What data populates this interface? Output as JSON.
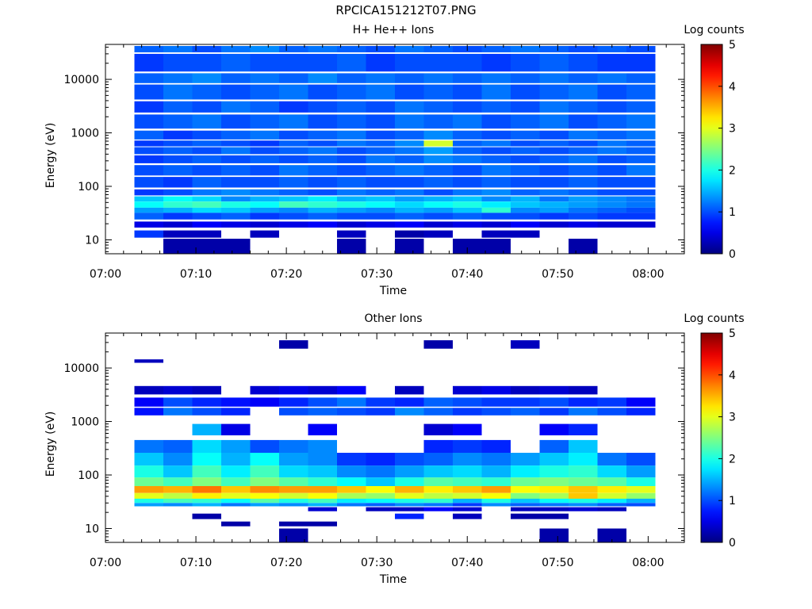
{
  "figure": {
    "title": "RPCICA151212T07.PNG"
  },
  "time_ticks": [
    "07:00",
    "07:10",
    "07:20",
    "07:30",
    "07:40",
    "07:50",
    "08:00"
  ],
  "chart_data": [
    {
      "type": "heatmap",
      "title": "H+ He++ Ions",
      "xlabel": "Time",
      "ylabel": "Energy (eV)",
      "x_unit": "minutes after 07:00",
      "xlim": [
        "07:00",
        "08:04"
      ],
      "ylim": [
        5.5,
        45000
      ],
      "yscale": "log",
      "ytick_values": [
        10,
        100,
        1000,
        10000
      ],
      "ytick_labels": [
        "10",
        "100",
        "1000",
        "10000"
      ],
      "colorbar": {
        "label": "Log counts",
        "range": [
          0,
          5
        ],
        "tick_labels": [
          "0",
          "1",
          "2",
          "3",
          "4",
          "5"
        ]
      },
      "time_bins_start": [
        3.2,
        6.4,
        9.6,
        12.8,
        16,
        19.2,
        22.4,
        25.6,
        28.8,
        32,
        35.2,
        38.4,
        41.6,
        44.8,
        48,
        51.2,
        54.4,
        57.6
      ],
      "bin_width_minutes": 3.2,
      "bands": [
        {
          "e_low": 32000,
          "e_high": 42000,
          "values": [
            1.1,
            1.2,
            1.0,
            1.2,
            1.3,
            1.1,
            1.2,
            1.1,
            1.0,
            1.2,
            1.1,
            1.0,
            1.1,
            1.2,
            1.1,
            1.0,
            1.1,
            1.0
          ]
        },
        {
          "e_low": 14000,
          "e_high": 30000,
          "values": [
            0.9,
            1.0,
            1.0,
            1.1,
            1.0,
            1.0,
            1.0,
            1.1,
            0.9,
            1.0,
            1.0,
            1.0,
            0.9,
            1.0,
            1.1,
            1.0,
            0.9,
            0.9
          ]
        },
        {
          "e_low": 8500,
          "e_high": 13000,
          "values": [
            1.1,
            1.2,
            1.3,
            1.1,
            1.2,
            1.1,
            1.3,
            1.1,
            1.2,
            1.1,
            1.2,
            1.1,
            1.2,
            1.1,
            1.2,
            1.1,
            1.2,
            1.1
          ]
        },
        {
          "e_low": 4200,
          "e_high": 8000,
          "values": [
            1.0,
            1.2,
            1.1,
            1.0,
            1.1,
            1.2,
            1.0,
            1.1,
            1.2,
            1.0,
            1.1,
            1.0,
            1.2,
            1.0,
            1.1,
            1.2,
            1.0,
            1.1
          ]
        },
        {
          "e_low": 2400,
          "e_high": 3900,
          "values": [
            0.9,
            1.1,
            1.0,
            1.2,
            1.1,
            0.9,
            1.0,
            1.1,
            1.0,
            1.2,
            1.1,
            1.0,
            1.1,
            1.0,
            1.2,
            1.1,
            1.0,
            1.1
          ]
        },
        {
          "e_low": 1200,
          "e_high": 2200,
          "values": [
            1.0,
            1.1,
            1.2,
            1.0,
            1.1,
            1.2,
            1.0,
            1.1,
            1.0,
            1.2,
            1.1,
            1.2,
            1.0,
            1.1,
            1.2,
            1.0,
            1.1,
            1.2
          ]
        },
        {
          "e_low": 750,
          "e_high": 1100,
          "values": [
            1.1,
            0.9,
            1.0,
            1.1,
            1.2,
            1.0,
            1.1,
            1.2,
            1.0,
            1.1,
            1.3,
            1.1,
            1.0,
            1.1,
            1.0,
            1.2,
            1.1,
            1.2
          ]
        },
        {
          "e_low": 560,
          "e_high": 720,
          "values": [
            0.9,
            1.0,
            1.1,
            1.0,
            0.9,
            1.1,
            1.0,
            1.2,
            1.1,
            1.3,
            2.9,
            1.1,
            1.2,
            1.0,
            1.1,
            1.0,
            1.2,
            1.1
          ]
        },
        {
          "e_low": 400,
          "e_high": 540,
          "values": [
            1.0,
            1.1,
            1.0,
            1.2,
            1.0,
            1.1,
            1.2,
            1.0,
            1.1,
            1.2,
            1.4,
            1.1,
            1.0,
            1.1,
            1.0,
            1.1,
            1.2,
            1.1
          ]
        },
        {
          "e_low": 270,
          "e_high": 380,
          "values": [
            0.9,
            1.0,
            1.1,
            1.0,
            1.1,
            1.0,
            1.1,
            1.0,
            1.2,
            1.1,
            1.3,
            1.2,
            1.1,
            1.0,
            1.1,
            1.2,
            1.0,
            1.1
          ]
        },
        {
          "e_low": 160,
          "e_high": 250,
          "values": [
            1.0,
            1.1,
            1.0,
            1.1,
            1.0,
            1.2,
            1.1,
            1.0,
            1.1,
            1.2,
            1.1,
            1.0,
            1.2,
            1.1,
            1.0,
            1.1,
            1.0,
            1.2
          ]
        },
        {
          "e_low": 95,
          "e_high": 150,
          "values": [
            1.0,
            0.9,
            1.1,
            1.0,
            1.0,
            1.1,
            1.0,
            1.1,
            1.0,
            1.0,
            1.1,
            1.0,
            1.1,
            1.0,
            1.0,
            1.1,
            1.0,
            1.0
          ]
        },
        {
          "e_low": 68,
          "e_high": 88,
          "values": [
            0.9,
            1.0,
            1.2,
            1.3,
            1.2,
            1.1,
            1.0,
            1.2,
            1.1,
            1.2,
            1.0,
            1.2,
            1.3,
            1.1,
            1.2,
            1.1,
            1.0,
            1.0
          ]
        },
        {
          "e_low": 52,
          "e_high": 65,
          "values": [
            1.6,
            1.9,
            1.7,
            1.3,
            1.5,
            1.6,
            1.8,
            1.5,
            1.6,
            1.4,
            1.5,
            1.6,
            1.3,
            1.5,
            1.2,
            1.4,
            1.3,
            1.2
          ]
        },
        {
          "e_low": 40,
          "e_high": 52,
          "values": [
            1.9,
            2.1,
            2.2,
            2.0,
            1.9,
            2.2,
            2.1,
            2.0,
            1.9,
            1.7,
            1.9,
            2.0,
            1.8,
            1.6,
            1.5,
            1.4,
            1.3,
            1.2
          ]
        },
        {
          "e_low": 32,
          "e_high": 40,
          "values": [
            1.4,
            1.5,
            1.7,
            1.6,
            1.4,
            1.3,
            1.5,
            1.4,
            1.3,
            1.5,
            1.4,
            1.6,
            2.1,
            1.3,
            1.4,
            1.2,
            1.1,
            1.0
          ]
        },
        {
          "e_low": 24,
          "e_high": 32,
          "values": [
            1.1,
            0.9,
            1.0,
            1.1,
            0.9,
            1.0,
            1.1,
            1.0,
            1.0,
            1.1,
            1.0,
            1.1,
            1.0,
            1.0,
            0.9,
            1.0,
            0.9,
            0.9
          ]
        },
        {
          "e_low": 17,
          "e_high": 22,
          "values": [
            0.5,
            0.4,
            0.6,
            0.5,
            0.4,
            0.5,
            0.6,
            0.4,
            0.5,
            0.6,
            0.4,
            0.5,
            0.4,
            0.6,
            0.4,
            0.5,
            0.4,
            0.4
          ]
        },
        {
          "e_low": 11,
          "e_high": 15,
          "values": [
            0.9,
            0.3,
            0.3,
            null,
            0.3,
            null,
            null,
            0.3,
            null,
            0.2,
            0.3,
            null,
            0.3,
            0.3,
            null,
            null,
            null,
            null
          ]
        },
        {
          "e_low": 5.6,
          "e_high": 10.5,
          "values": [
            null,
            0.2,
            0.2,
            0.2,
            null,
            null,
            null,
            0.2,
            null,
            0.2,
            null,
            0.2,
            0.2,
            null,
            null,
            0.2,
            null,
            null
          ]
        }
      ]
    },
    {
      "type": "heatmap",
      "title": "Other Ions",
      "xlabel": "Time",
      "ylabel": "Energy (eV)",
      "x_unit": "minutes after 07:00",
      "xlim": [
        "07:00",
        "08:04"
      ],
      "ylim": [
        5.5,
        45000
      ],
      "yscale": "log",
      "ytick_values": [
        10,
        100,
        1000,
        10000
      ],
      "ytick_labels": [
        "10",
        "100",
        "1000",
        "10000"
      ],
      "colorbar": {
        "label": "Log counts",
        "range": [
          0,
          5
        ],
        "tick_labels": [
          "0",
          "1",
          "2",
          "3",
          "4",
          "5"
        ]
      },
      "time_bins_start": [
        3.2,
        6.4,
        9.6,
        12.8,
        16,
        19.2,
        22.4,
        25.6,
        28.8,
        32,
        35.2,
        38.4,
        41.6,
        44.8,
        48,
        51.2,
        54.4,
        57.6
      ],
      "bin_width_minutes": 3.2,
      "bands": [
        {
          "e_low": 23000,
          "e_high": 33000,
          "values": [
            null,
            null,
            null,
            null,
            null,
            0.2,
            null,
            null,
            null,
            null,
            0.2,
            null,
            null,
            0.3,
            null,
            null,
            null,
            null
          ]
        },
        {
          "e_low": 12500,
          "e_high": 14500,
          "values": [
            0.3,
            null,
            null,
            null,
            null,
            null,
            null,
            null,
            null,
            null,
            null,
            null,
            null,
            null,
            null,
            null,
            null,
            null
          ]
        },
        {
          "e_low": 3200,
          "e_high": 4600,
          "values": [
            0.3,
            0.4,
            0.3,
            null,
            0.4,
            0.5,
            0.4,
            0.6,
            null,
            0.3,
            null,
            0.4,
            0.5,
            0.3,
            0.4,
            0.3,
            null,
            null
          ]
        },
        {
          "e_low": 1900,
          "e_high": 2800,
          "values": [
            0.6,
            1.0,
            0.8,
            0.7,
            0.6,
            0.8,
            1.0,
            1.2,
            0.9,
            0.8,
            1.1,
            1.0,
            0.9,
            0.9,
            1.0,
            0.8,
            0.9,
            0.6
          ]
        },
        {
          "e_low": 1300,
          "e_high": 1800,
          "values": [
            0.7,
            1.2,
            1.0,
            0.8,
            null,
            1.0,
            1.1,
            1.0,
            0.9,
            1.3,
            1.1,
            0.9,
            1.0,
            1.1,
            0.9,
            1.2,
            1.0,
            0.8
          ]
        },
        {
          "e_low": 550,
          "e_high": 900,
          "values": [
            null,
            null,
            1.5,
            0.5,
            null,
            null,
            0.6,
            null,
            null,
            null,
            0.4,
            0.6,
            null,
            null,
            0.6,
            0.8,
            null,
            null
          ]
        },
        {
          "e_low": 260,
          "e_high": 450,
          "values": [
            1.2,
            1.1,
            1.7,
            1.4,
            1.0,
            1.2,
            1.3,
            null,
            null,
            null,
            0.8,
            0.9,
            0.8,
            null,
            1.1,
            1.6,
            null,
            null
          ]
        },
        {
          "e_low": 150,
          "e_high": 260,
          "values": [
            1.6,
            1.3,
            1.9,
            1.5,
            1.9,
            1.4,
            1.3,
            0.9,
            0.8,
            1.0,
            1.1,
            1.3,
            1.2,
            1.4,
            1.6,
            1.8,
            1.2,
            1.0
          ]
        },
        {
          "e_low": 90,
          "e_high": 150,
          "values": [
            2.0,
            1.6,
            2.2,
            1.8,
            2.2,
            1.7,
            1.6,
            1.3,
            1.2,
            1.4,
            1.6,
            1.7,
            1.5,
            1.8,
            2.0,
            2.1,
            1.7,
            1.4
          ]
        },
        {
          "e_low": 62,
          "e_high": 90,
          "values": [
            2.4,
            2.2,
            2.5,
            2.2,
            2.5,
            2.3,
            2.1,
            1.9,
            1.6,
            2.0,
            2.3,
            2.2,
            2.1,
            2.4,
            2.5,
            2.4,
            2.3,
            2.0
          ]
        },
        {
          "e_low": 46,
          "e_high": 62,
          "values": [
            3.6,
            3.5,
            3.8,
            3.4,
            3.7,
            3.6,
            3.6,
            3.4,
            3.1,
            3.5,
            3.2,
            3.4,
            3.6,
            3.1,
            3.2,
            3.4,
            3.2,
            3.0
          ]
        },
        {
          "e_low": 36,
          "e_high": 46,
          "values": [
            3.0,
            2.8,
            3.2,
            3.0,
            3.1,
            2.9,
            3.1,
            2.7,
            2.6,
            3.0,
            2.8,
            2.9,
            3.1,
            2.5,
            2.7,
            3.4,
            2.9,
            2.6
          ]
        },
        {
          "e_low": 30,
          "e_high": 36,
          "values": [
            2.0,
            2.2,
            2.1,
            1.9,
            2.3,
            2.0,
            2.2,
            1.8,
            1.9,
            2.0,
            2.1,
            1.5,
            2.0,
            1.6,
            1.9,
            2.0,
            1.8,
            1.5
          ]
        },
        {
          "e_low": 26,
          "e_high": 30,
          "values": [
            1.4,
            1.3,
            1.5,
            1.2,
            1.4,
            1.3,
            1.5,
            1.2,
            1.1,
            1.3,
            1.2,
            0.9,
            1.3,
            1.1,
            1.2,
            1.3,
            1.1,
            1.0
          ]
        },
        {
          "e_low": 21,
          "e_high": 25,
          "values": [
            null,
            null,
            null,
            null,
            null,
            null,
            0.4,
            null,
            0.3,
            0.3,
            0.6,
            0.4,
            null,
            0.3,
            0.3,
            0.4,
            0.3,
            null
          ]
        },
        {
          "e_low": 15,
          "e_high": 19,
          "values": [
            null,
            null,
            0.2,
            null,
            null,
            null,
            null,
            null,
            null,
            0.8,
            null,
            0.3,
            null,
            0.2,
            0.2,
            null,
            null,
            null
          ]
        },
        {
          "e_low": 11,
          "e_high": 13.5,
          "values": [
            null,
            null,
            null,
            0.2,
            null,
            0.2,
            0.2,
            null,
            null,
            null,
            null,
            null,
            null,
            null,
            null,
            null,
            null,
            null
          ]
        },
        {
          "e_low": 5.6,
          "e_high": 10,
          "values": [
            null,
            null,
            null,
            null,
            null,
            0.2,
            null,
            null,
            null,
            null,
            null,
            null,
            null,
            null,
            0.2,
            null,
            0.2,
            null
          ]
        }
      ]
    }
  ]
}
